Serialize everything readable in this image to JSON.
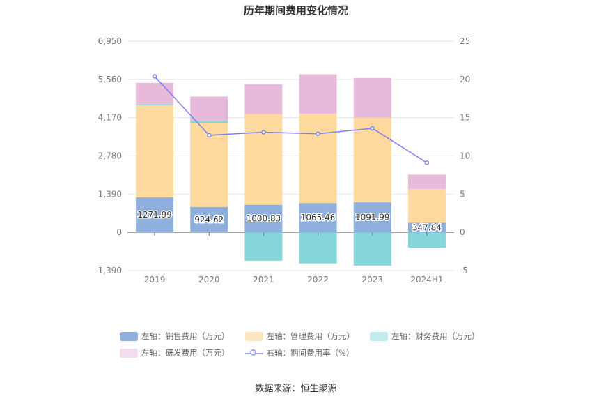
{
  "title": "历年期间费用变化情况",
  "source": "数据来源：恒生聚源",
  "chart_data": {
    "type": "bar",
    "stacked": true,
    "categories": [
      "2019",
      "2020",
      "2021",
      "2022",
      "2023",
      "2024H1"
    ],
    "left_axis": {
      "ticks": [
        "6,950",
        "5,560",
        "4,170",
        "2,780",
        "1,390",
        "0",
        "-1,390"
      ],
      "ylim": [
        -1390,
        6950
      ]
    },
    "right_axis": {
      "ticks": [
        "25",
        "20",
        "15",
        "10",
        "5",
        "0",
        "-5"
      ],
      "ylim": [
        -5,
        25
      ]
    },
    "series": [
      {
        "name": "左轴：销售费用（万元）",
        "color": "#8fb0dc",
        "values": [
          1271.99,
          924.62,
          1000.83,
          1065.46,
          1091.99,
          347.84
        ],
        "labels": [
          "1271.99",
          "924.62",
          "1000.83",
          "1065.46",
          "1091.99",
          "347.84"
        ]
      },
      {
        "name": "左轴：管理费用（万元）",
        "color": "#fdd99d",
        "values": [
          3350,
          3060,
          3300,
          3250,
          3080,
          1230
        ]
      },
      {
        "name": "左轴：财务费用（万元）",
        "color": "#84d6d9",
        "values": [
          30,
          50,
          -1030,
          -1130,
          -1210,
          -560
        ]
      },
      {
        "name": "左轴：研发费用（万元）",
        "color": "#e7badb",
        "values": [
          780,
          900,
          1080,
          1430,
          1440,
          520
        ]
      },
      {
        "name": "右轴：期间费用率（%）",
        "type": "line",
        "axis": "right",
        "color": "#7b7fef",
        "values": [
          20.4,
          12.7,
          13.1,
          12.9,
          13.6,
          9.1
        ]
      }
    ],
    "legend_position": "bottom",
    "grid": true
  }
}
